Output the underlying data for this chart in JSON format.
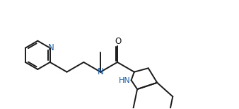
{
  "bg_color": "#ffffff",
  "line_color": "#1a1a1a",
  "N_color": "#1a5fa8",
  "O_color": "#1a1a1a",
  "figsize": [
    3.38,
    1.54
  ],
  "dpi": 100,
  "xlim": [
    0,
    10
  ],
  "ylim": [
    0,
    4.55
  ]
}
